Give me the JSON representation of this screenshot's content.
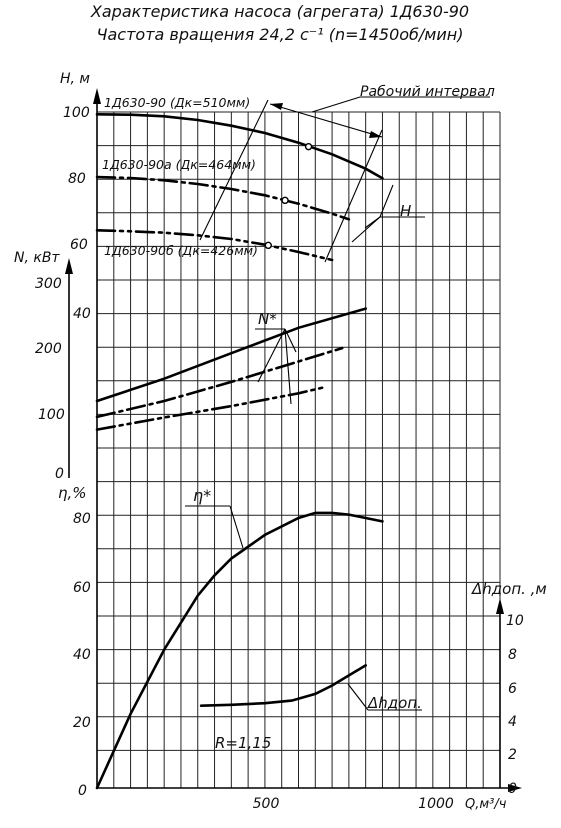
{
  "title_line1": "Характеристика насоса (агрегата) 1Д630-90",
  "title_line2": "Частота вращения 24,2 с⁻¹ (n=1450об/мин)",
  "chart_data": [
    {
      "type": "line",
      "ylabel": "H, м",
      "x_axis": {
        "label": "Q,м³/ч",
        "range": [
          0,
          1200
        ],
        "ticks": [
          "500",
          "1000"
        ]
      },
      "ylim": [
        40,
        100
      ],
      "yticks": [
        "100",
        "80",
        "60",
        "40"
      ],
      "grid": true,
      "series": [
        {
          "name": "1Д630-90 (Дк=510мм)",
          "x": [
            0,
            100,
            200,
            300,
            400,
            500,
            600,
            700,
            800,
            850
          ],
          "y": [
            99.3,
            99.2,
            98.7,
            97.6,
            95.9,
            93.7,
            90.8,
            87.3,
            83.0,
            80.1
          ],
          "style": "solid"
        },
        {
          "name": "1Д630-90а (Дк=464мм)",
          "x": [
            0,
            100,
            200,
            300,
            400,
            500,
            600,
            700,
            750
          ],
          "y": [
            80.5,
            80.2,
            79.5,
            78.4,
            76.9,
            75.0,
            72.5,
            69.5,
            67.8
          ],
          "style": "dashdot"
        },
        {
          "name": "1Д630-90б (Дк=426мм)",
          "x": [
            0,
            100,
            200,
            300,
            400,
            500,
            600,
            700
          ],
          "y": [
            64.5,
            64.2,
            63.8,
            63.0,
            61.9,
            60.2,
            58.0,
            55.6
          ],
          "style": "dashdotdot"
        }
      ],
      "points": [
        {
          "x": 630,
          "y": 89.6
        },
        {
          "x": 560,
          "y": 73.5
        },
        {
          "x": 510,
          "y": 60.0
        }
      ],
      "annotations": [
        "Рабочий интервал",
        "H"
      ]
    },
    {
      "type": "line",
      "ylabel": "N, кВт",
      "ylim": [
        0,
        300
      ],
      "yticks": [
        "300",
        "200",
        "100",
        "0"
      ],
      "series": [
        {
          "name": "1Д630-90",
          "x": [
            0,
            200,
            400,
            600,
            800
          ],
          "y": [
            110,
            145,
            185,
            225,
            255
          ],
          "style": "solid"
        },
        {
          "name": "1Д630-90а",
          "x": [
            0,
            200,
            400,
            600,
            730
          ],
          "y": [
            85,
            110,
            140,
            172,
            193
          ],
          "style": "dashdot"
        },
        {
          "name": "1Д630-90б",
          "x": [
            0,
            200,
            400,
            600,
            680
          ],
          "y": [
            65,
            84,
            102,
            122,
            132
          ],
          "style": "dashdotdot"
        }
      ],
      "annotations": [
        "N*"
      ]
    },
    {
      "type": "line",
      "ylabel": "η,%",
      "ylim": [
        0,
        80
      ],
      "yticks": [
        "80",
        "60",
        "40",
        "20",
        "0"
      ],
      "series": [
        {
          "name": "η*",
          "x": [
            0,
            100,
            200,
            300,
            350,
            400,
            500,
            600,
            650,
            700,
            750,
            800,
            850
          ],
          "y": [
            0,
            22,
            41,
            57,
            63,
            68,
            75,
            80,
            81.5,
            81.5,
            81,
            80,
            79
          ],
          "style": "solid"
        }
      ]
    },
    {
      "type": "line",
      "ylabel": "Δhдоп. ,м",
      "ylim": [
        0,
        10
      ],
      "yticks": [
        "10",
        "8",
        "6",
        "4",
        "2",
        "0"
      ],
      "series": [
        {
          "name": "Δhдоп.",
          "x": [
            310,
            400,
            500,
            580,
            650,
            700,
            750,
            800
          ],
          "y": [
            4.9,
            4.95,
            5.05,
            5.2,
            5.6,
            6.1,
            6.7,
            7.3
          ],
          "style": "solid"
        }
      ],
      "annotations": [
        "R=1,15"
      ]
    }
  ]
}
